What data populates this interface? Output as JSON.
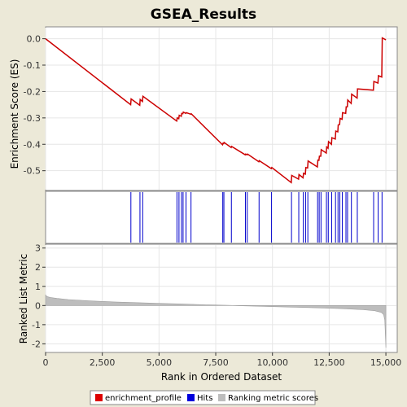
{
  "chart_data": {
    "type": "line",
    "title": "GSEA_Results",
    "xlabel": "Rank in Ordered Dataset",
    "xlim": [
      0,
      15500
    ],
    "xticks": [
      0,
      2500,
      5000,
      7500,
      10000,
      12500,
      15000
    ],
    "xtick_labels": [
      "0",
      "2,500",
      "5,000",
      "7,500",
      "10,000",
      "12,500",
      "15,000"
    ],
    "colors": {
      "enrichment": "#cc0000",
      "hits": "#0000cc",
      "ranking": "#bdbdbd",
      "grid": "#e6e6e6",
      "background": "#ece9d8"
    },
    "panels": {
      "enrichment": {
        "ylabel": "Enrichment Score (ES)",
        "ylim": [
          -0.575,
          0.045
        ],
        "yticks": [
          0.0,
          -0.1,
          -0.2,
          -0.3,
          -0.4,
          -0.5
        ],
        "ytick_labels": [
          "0.0",
          "-0.1",
          "-0.2",
          "-0.3",
          "-0.4",
          "-0.5"
        ],
        "grid": true
      },
      "ranking": {
        "ylabel": "Ranked List Metric",
        "ylim": [
          -2.45,
          3.2
        ],
        "yticks": [
          3,
          2,
          1,
          0,
          -1,
          -2
        ],
        "ytick_labels": [
          "3",
          "2",
          "1",
          "0",
          "-1",
          "-2"
        ],
        "grid": true
      }
    },
    "series": [
      {
        "name": "enrichment_profile",
        "x": [
          0,
          3750,
          3770,
          4150,
          4170,
          4270,
          4290,
          5780,
          5800,
          5870,
          5890,
          5980,
          6000,
          6050,
          6070,
          6180,
          6200,
          6400,
          6420,
          7800,
          7820,
          7850,
          7870,
          8180,
          8200,
          8800,
          8820,
          8880,
          8900,
          9400,
          9420,
          9950,
          9970,
          10830,
          10850,
          11150,
          11170,
          11350,
          11370,
          11450,
          11470,
          11550,
          11570,
          11980,
          12000,
          12050,
          12070,
          12130,
          12150,
          12370,
          12390,
          12450,
          12470,
          12600,
          12620,
          12770,
          12790,
          12880,
          12900,
          12960,
          12980,
          13070,
          13090,
          13230,
          13250,
          13300,
          13320,
          13470,
          13490,
          13730,
          13750,
          14450,
          14470,
          14650,
          14670,
          14820,
          14840,
          15000
        ],
        "y": [
          0.0,
          -0.25,
          -0.228,
          -0.252,
          -0.23,
          -0.238,
          -0.218,
          -0.312,
          -0.3,
          -0.303,
          -0.29,
          -0.294,
          -0.283,
          -0.284,
          -0.278,
          -0.283,
          -0.28,
          -0.286,
          -0.284,
          -0.402,
          -0.396,
          -0.397,
          -0.393,
          -0.412,
          -0.408,
          -0.44,
          -0.437,
          -0.44,
          -0.437,
          -0.466,
          -0.462,
          -0.492,
          -0.488,
          -0.545,
          -0.518,
          -0.532,
          -0.515,
          -0.527,
          -0.51,
          -0.513,
          -0.488,
          -0.49,
          -0.463,
          -0.486,
          -0.46,
          -0.461,
          -0.445,
          -0.445,
          -0.42,
          -0.433,
          -0.41,
          -0.415,
          -0.39,
          -0.4,
          -0.375,
          -0.38,
          -0.35,
          -0.353,
          -0.327,
          -0.325,
          -0.302,
          -0.305,
          -0.28,
          -0.283,
          -0.258,
          -0.258,
          -0.232,
          -0.245,
          -0.21,
          -0.225,
          -0.19,
          -0.195,
          -0.162,
          -0.168,
          -0.14,
          -0.145,
          0.003,
          -0.004
        ]
      },
      {
        "name": "Hits",
        "x": [
          3760,
          4160,
          4280,
          5790,
          5880,
          5990,
          6060,
          6190,
          6410,
          7810,
          7860,
          8190,
          8810,
          8890,
          9410,
          9960,
          10840,
          11160,
          11360,
          11460,
          11560,
          11990,
          12060,
          12140,
          12380,
          12460,
          12610,
          12780,
          12890,
          12970,
          13080,
          13240,
          13310,
          13480,
          13740,
          14460,
          14660,
          14830
        ]
      },
      {
        "name": "Ranking metric scores",
        "x": [
          0,
          60,
          200,
          500,
          1000,
          2000,
          3000,
          4000,
          5000,
          6000,
          7000,
          8000,
          8500,
          9000,
          10000,
          11000,
          12000,
          13000,
          14000,
          14500,
          14800,
          14900,
          14950,
          15000
        ],
        "y": [
          0.55,
          0.47,
          0.42,
          0.37,
          0.31,
          0.24,
          0.19,
          0.15,
          0.11,
          0.08,
          0.04,
          0.01,
          -0.01,
          -0.03,
          -0.06,
          -0.09,
          -0.12,
          -0.16,
          -0.22,
          -0.27,
          -0.36,
          -0.48,
          -0.75,
          -2.2
        ]
      }
    ]
  },
  "legend": {
    "items": [
      {
        "label": "enrichment_profile",
        "color": "#dd0000"
      },
      {
        "label": "Hits",
        "color": "#0000dd"
      },
      {
        "label": "Ranking metric scores",
        "color": "#bdbdbd"
      }
    ]
  }
}
